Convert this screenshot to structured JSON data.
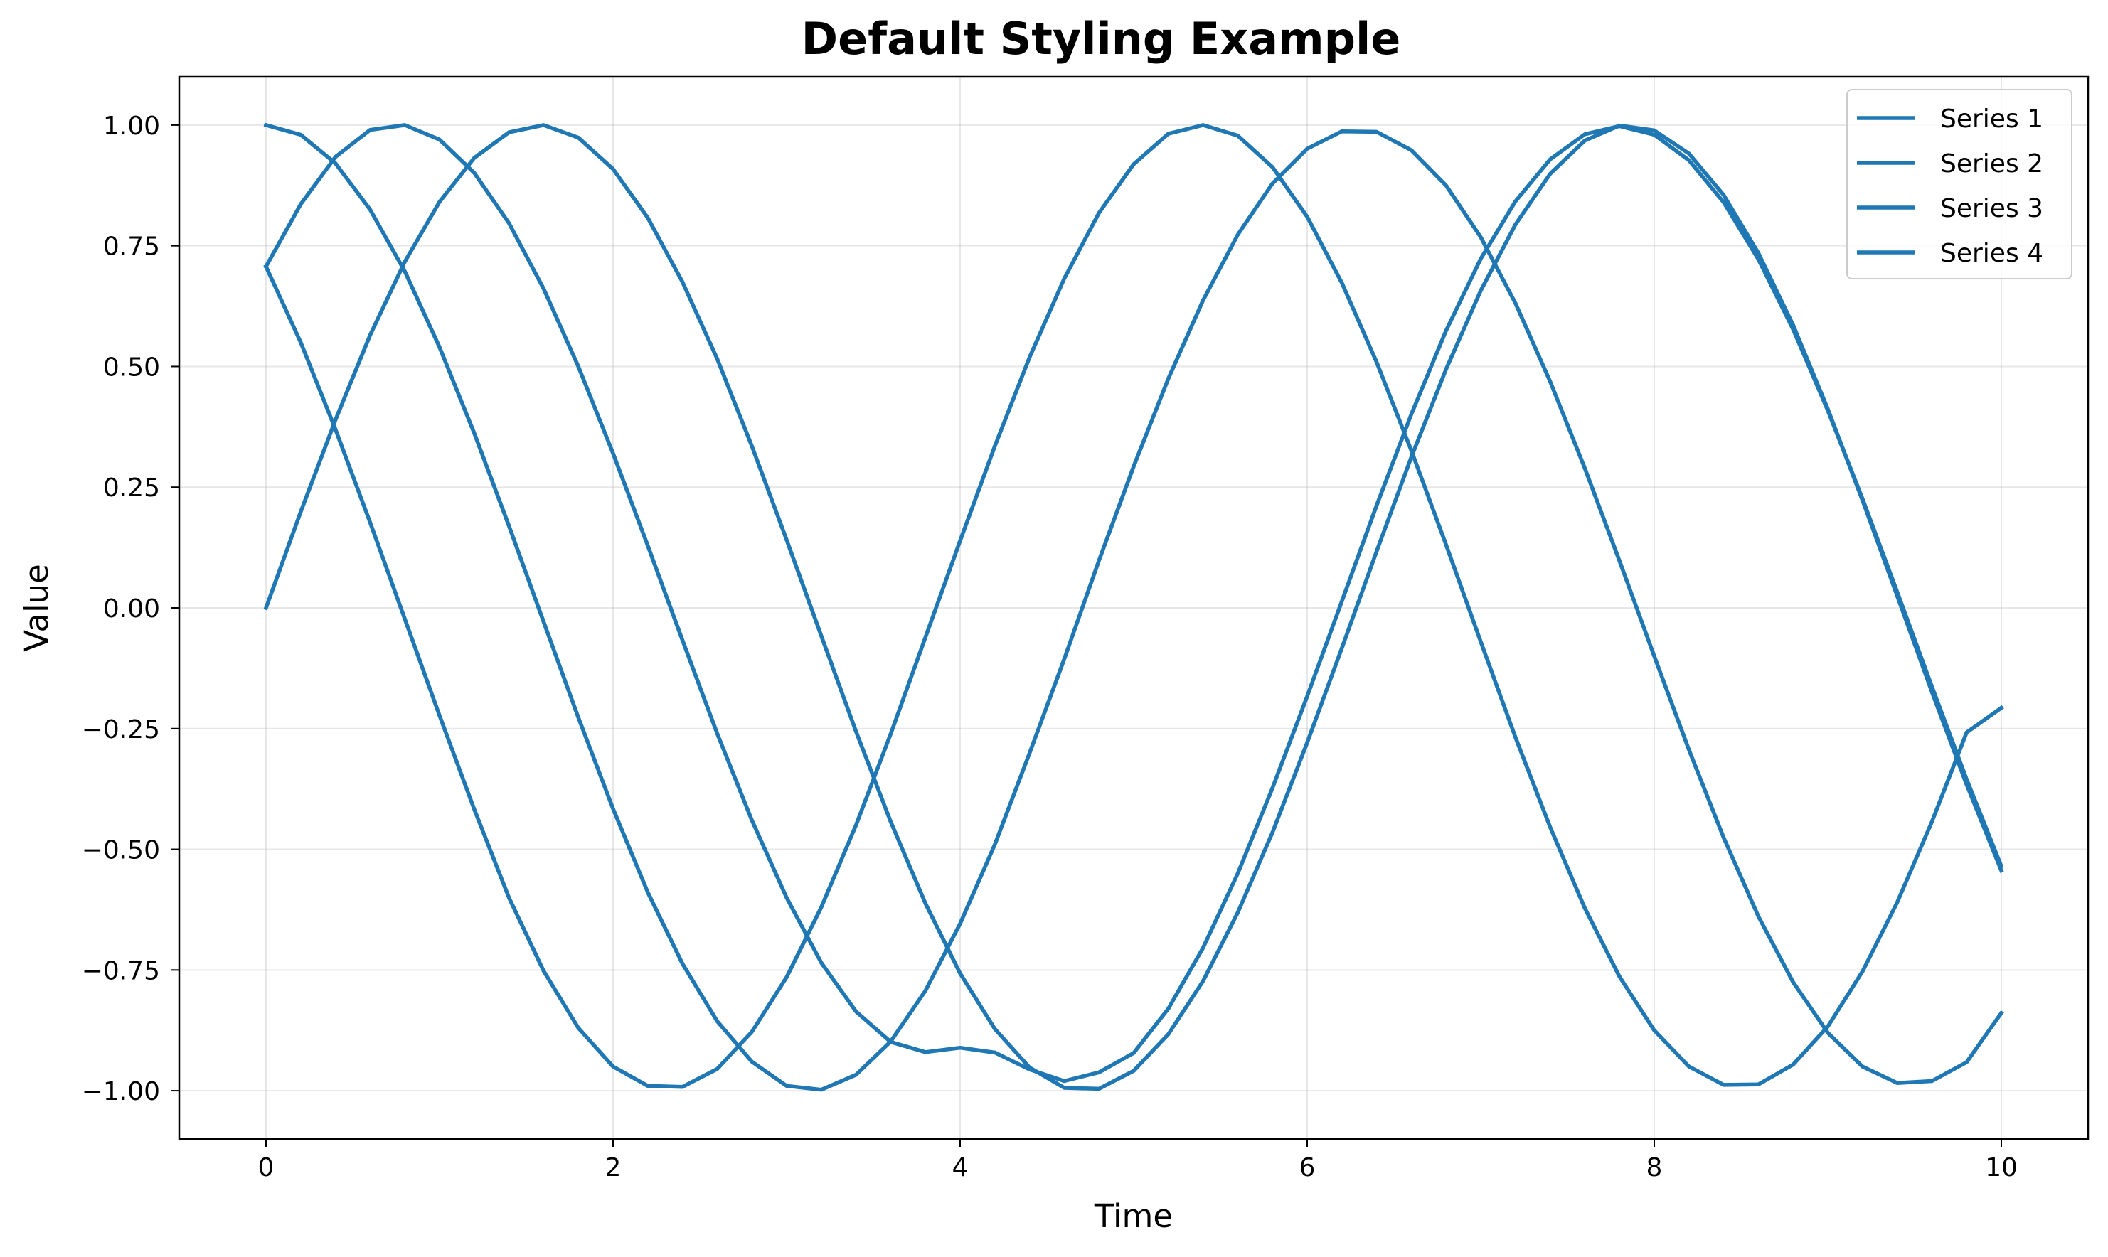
{
  "chart_data": {
    "type": "line",
    "title": "Default Styling Example",
    "xlabel": "Time",
    "ylabel": "Value",
    "xlim": [
      -0.5,
      10.5
    ],
    "ylim": [
      -1.1,
      1.1
    ],
    "xticks": [
      0,
      2,
      4,
      6,
      8,
      10
    ],
    "xtick_labels": [
      "0",
      "2",
      "4",
      "6",
      "8",
      "10"
    ],
    "yticks": [
      -1.0,
      -0.75,
      -0.5,
      -0.25,
      0.0,
      0.25,
      0.5,
      0.75,
      1.0
    ],
    "ytick_labels": [
      "−1.00",
      "−0.75",
      "−0.50",
      "−0.25",
      "0.00",
      "0.25",
      "0.50",
      "0.75",
      "1.00"
    ],
    "grid": true,
    "legend_position": "top-right",
    "line_color": "#1f77b4",
    "x": [
      0.0,
      0.2,
      0.4,
      0.6,
      0.8,
      1.0,
      1.2,
      1.4,
      1.6,
      1.8,
      2.0,
      2.2,
      2.4,
      2.6,
      2.8,
      3.0,
      3.2,
      3.4,
      3.6,
      3.8,
      4.0,
      4.2,
      4.4,
      4.6,
      4.8,
      5.0,
      5.2,
      5.4,
      5.6,
      5.8,
      6.0,
      6.2,
      6.4,
      6.6,
      6.8,
      7.0,
      7.2,
      7.4,
      7.6,
      7.8,
      8.0,
      8.2,
      8.4,
      8.6,
      8.8,
      9.0,
      9.2,
      9.4,
      9.6,
      9.8,
      10.0
    ],
    "series": [
      {
        "name": "Series 1",
        "values": [
          0.0,
          0.199,
          0.389,
          0.565,
          0.717,
          0.841,
          0.932,
          0.985,
          1.0,
          0.974,
          0.909,
          0.808,
          0.675,
          0.516,
          0.335,
          0.141,
          -0.058,
          -0.256,
          -0.443,
          -0.612,
          -0.757,
          -0.872,
          -0.952,
          -0.994,
          -0.996,
          -0.959,
          -0.883,
          -0.773,
          -0.631,
          -0.465,
          -0.279,
          -0.083,
          0.117,
          0.312,
          0.494,
          0.657,
          0.794,
          0.899,
          0.968,
          0.999,
          0.989,
          0.941,
          0.855,
          0.735,
          0.586,
          0.412,
          0.223,
          0.025,
          -0.174,
          -0.366,
          -0.544
        ]
      },
      {
        "name": "Series 2",
        "values": [
          0.707,
          0.836,
          0.934,
          0.99,
          1.0,
          0.97,
          0.901,
          0.797,
          0.661,
          0.5,
          0.32,
          0.129,
          -0.067,
          -0.26,
          -0.44,
          -0.6,
          -0.735,
          -0.836,
          -0.899,
          -0.92,
          -0.911,
          -0.921,
          -0.956,
          -0.98,
          -0.962,
          -0.922,
          -0.83,
          -0.704,
          -0.55,
          -0.373,
          -0.183,
          0.014,
          0.212,
          0.401,
          0.574,
          0.723,
          0.842,
          0.929,
          0.981,
          0.998,
          0.98,
          0.927,
          0.84,
          0.722,
          0.577,
          0.409,
          0.226,
          0.033,
          -0.163,
          -0.355,
          -0.535
        ]
      },
      {
        "name": "Series 3",
        "values": [
          1.0,
          0.98,
          0.921,
          0.825,
          0.697,
          0.54,
          0.362,
          0.17,
          -0.029,
          -0.227,
          -0.416,
          -0.589,
          -0.737,
          -0.856,
          -0.94,
          -0.99,
          -0.998,
          -0.967,
          -0.898,
          -0.793,
          -0.654,
          -0.49,
          -0.301,
          -0.106,
          0.098,
          0.293,
          0.475,
          0.637,
          0.773,
          0.879,
          0.951,
          0.987,
          0.986,
          0.948,
          0.875,
          0.768,
          0.631,
          0.469,
          0.289,
          0.097,
          -0.1,
          -0.294,
          -0.476,
          -0.639,
          -0.775,
          -0.88,
          -0.95,
          -0.984,
          -0.98,
          -0.941,
          -0.839
        ]
      },
      {
        "name": "Series 4",
        "values": [
          0.707,
          0.55,
          0.37,
          0.177,
          -0.023,
          -0.223,
          -0.417,
          -0.6,
          -0.752,
          -0.87,
          -0.95,
          -0.99,
          -0.992,
          -0.955,
          -0.878,
          -0.765,
          -0.62,
          -0.45,
          -0.261,
          -0.061,
          0.139,
          0.335,
          0.519,
          0.682,
          0.818,
          0.919,
          0.982,
          1.0,
          0.978,
          0.913,
          0.81,
          0.673,
          0.509,
          0.326,
          0.131,
          -0.07,
          -0.268,
          -0.454,
          -0.622,
          -0.764,
          -0.875,
          -0.95,
          -0.988,
          -0.987,
          -0.946,
          -0.867,
          -0.753,
          -0.61,
          -0.443,
          -0.258,
          -0.207
        ]
      }
    ]
  }
}
